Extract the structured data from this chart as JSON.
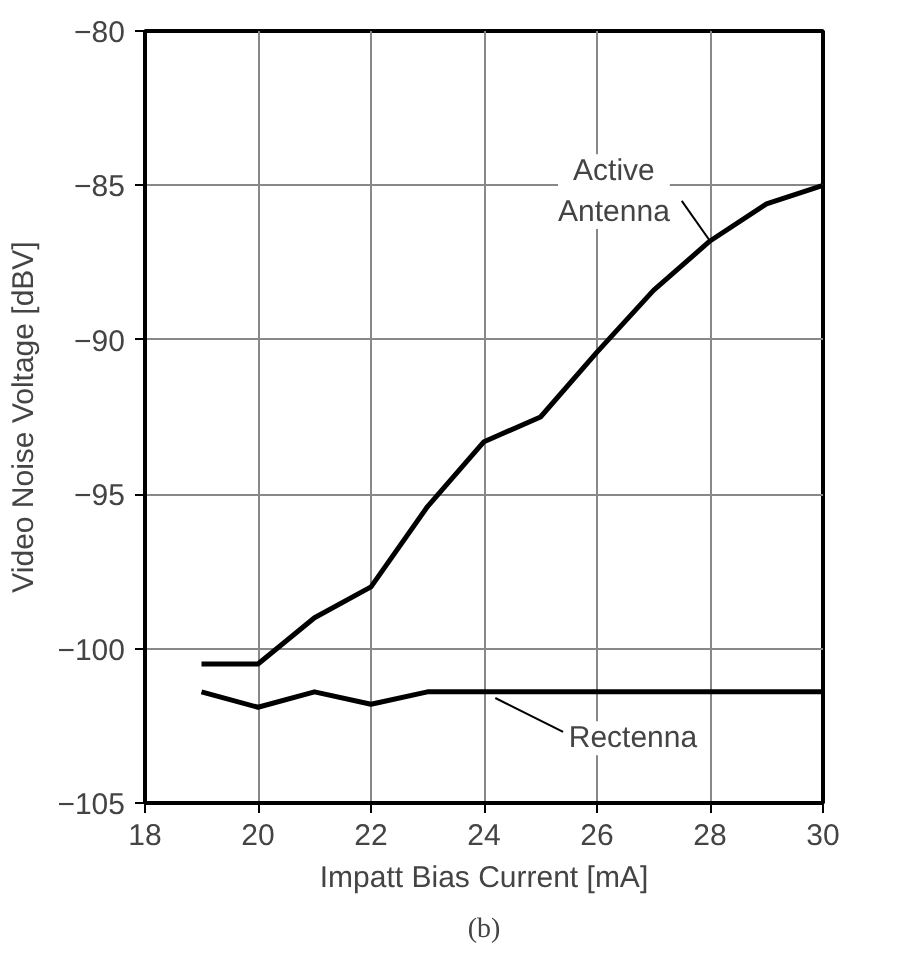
{
  "chart_data": {
    "type": "line",
    "xlabel": "Impatt Bias Current [mA]",
    "ylabel": "Video Noise Voltage [dBV]",
    "x": [
      19,
      20,
      21,
      22,
      23,
      24,
      25,
      26,
      27,
      28,
      29,
      30
    ],
    "series": [
      {
        "color": "#000000",
        "values": [
          -100.5,
          -100.5,
          -99.0,
          -98.0,
          -95.4,
          -93.3,
          -92.5,
          -90.4,
          -88.4,
          -86.8,
          -85.6,
          -85.0
        ]
      },
      {
        "color": "#000000",
        "values": [
          -101.4,
          -101.9,
          -101.4,
          -101.8,
          -101.4,
          -101.4,
          -101.4,
          -101.4,
          -101.4,
          -101.4,
          -101.4,
          -101.4
        ]
      }
    ],
    "xlim": [
      18,
      30
    ],
    "ylim": [
      -105,
      -80
    ],
    "xticks": [
      18,
      20,
      22,
      24,
      26,
      28,
      30
    ],
    "yticks": [
      -105,
      -100,
      -95,
      -90,
      -85,
      -80
    ],
    "grid": true,
    "marker": "none",
    "line_style": "solid",
    "annotations": [
      {
        "text": "Active\nAntenna",
        "x": 28,
        "y": -86.8
      },
      {
        "text": "Rectenna",
        "x": 24.2,
        "y": -101.4
      },
      "(b)"
    ]
  }
}
